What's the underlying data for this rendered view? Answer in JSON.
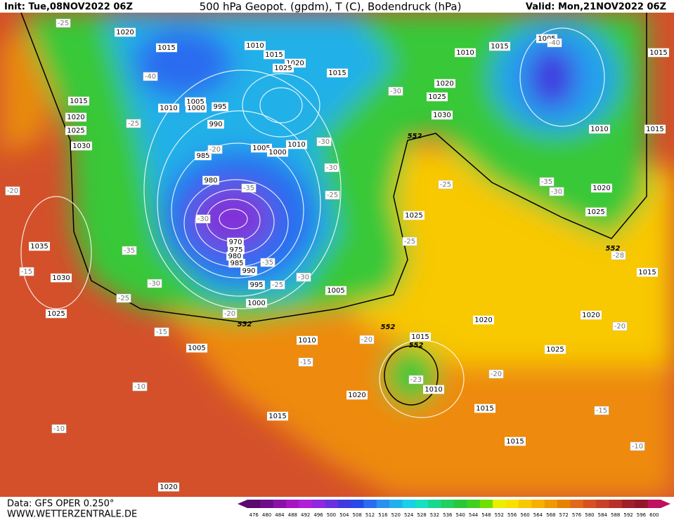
{
  "header": {
    "init": "Init: Tue,08NOV2022 06Z",
    "title": "500 hPa Geopot. (gpdm), T (C), Bodendruck (hPa)",
    "valid": "Valid: Mon,21NOV2022 06Z"
  },
  "isobar_labels": [
    1020,
    1015,
    1010,
    1015,
    1020,
    1025,
    1015,
    1015,
    1010,
    1005,
    1000,
    995,
    1020,
    1025,
    990,
    1030,
    1005,
    1000,
    1010,
    985,
    980,
    970,
    975,
    980,
    985,
    990,
    995,
    1000,
    1035,
    1030,
    1025,
    1005,
    1005,
    1010,
    1015,
    1020,
    1010,
    1015,
    1015,
    1015,
    1020,
    1020,
    1025,
    1020,
    1015,
    1025,
    1020,
    1010,
    1015,
    1015,
    1005,
    1010,
    1015,
    1020,
    1025,
    1030,
    1025
  ],
  "temperature_labels": [
    -25,
    -40,
    -25,
    -20,
    -35,
    -30,
    -35,
    -35,
    -25,
    -30,
    -30,
    -25,
    -20,
    -15,
    -15,
    -20,
    -25,
    -30,
    -30,
    -30,
    -25,
    -25,
    -35,
    -30,
    -40,
    -28,
    -20,
    -15,
    -23,
    -20,
    -20,
    -15,
    -10,
    -10,
    -10
  ],
  "geopotential_labels": [
    552,
    552,
    552,
    552,
    552
  ],
  "footer": {
    "data": "Data: GFS OPER 0.250°",
    "site": "WWW.WETTERZENTRALE.DE"
  },
  "colorbar": {
    "ticks": [
      476,
      480,
      484,
      488,
      492,
      496,
      500,
      504,
      508,
      512,
      516,
      520,
      524,
      528,
      532,
      536,
      540,
      544,
      548,
      552,
      556,
      560,
      564,
      568,
      572,
      576,
      580,
      584,
      588,
      592,
      596,
      600
    ],
    "colors": [
      "#5a0a6e",
      "#6e0c8c",
      "#8a10a8",
      "#a814c0",
      "#b020d8",
      "#9028e0",
      "#6a30e0",
      "#4038e0",
      "#2848e8",
      "#2a6cf0",
      "#2a90f0",
      "#20b0f0",
      "#18d0e8",
      "#18e0c0",
      "#18d890",
      "#20d060",
      "#28c838",
      "#40d020",
      "#70e000",
      "#e8f000",
      "#f8e000",
      "#f8c800",
      "#f8b000",
      "#f09800",
      "#e88000",
      "#e06818",
      "#d85020",
      "#c84028",
      "#b83028",
      "#a02028",
      "#901828",
      "#c01060"
    ]
  }
}
